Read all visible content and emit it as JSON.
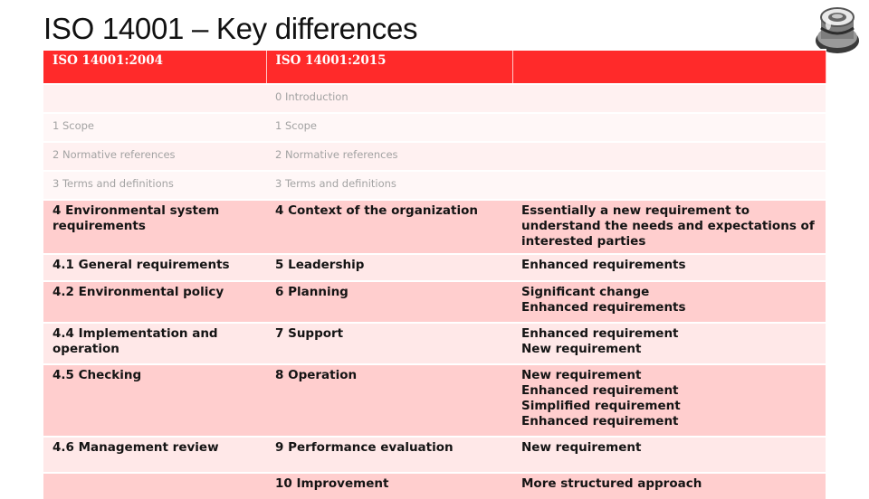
{
  "slide": {
    "title": "ISO 14001 – Key differences"
  },
  "colors": {
    "header": "#ff2a2a",
    "row_odd": "#ffcece",
    "row_even": "#ffe8e8"
  },
  "table": {
    "headers": [
      "ISO 14001:2004",
      "ISO 14001:2015",
      ""
    ],
    "rows": [
      {
        "cells": [
          "",
          "0 Introduction",
          ""
        ]
      },
      {
        "cells": [
          "1 Scope",
          "1 Scope",
          ""
        ]
      },
      {
        "cells": [
          "2 Normative references",
          "2 Normative references",
          ""
        ]
      },
      {
        "cells": [
          "3 Terms and definitions",
          "3 Terms and definitions",
          ""
        ]
      },
      {
        "cells": [
          "4 Environmental system requirements",
          "4 Context of the organization",
          "Essentially a new requirement to understand the needs and expectations of interested parties"
        ]
      },
      {
        "cells": [
          "4.1 General requirements",
          "5 Leadership",
          "Enhanced requirements"
        ]
      },
      {
        "cells": [
          "4.2 Environmental policy",
          "6 Planning",
          "Significant change\nEnhanced requirements"
        ]
      },
      {
        "cells": [
          "4.4 Implementation and operation",
          "7 Support",
          "Enhanced requirement\nNew requirement"
        ]
      },
      {
        "cells": [
          "4.5 Checking",
          "8 Operation",
          "New requirement\nEnhanced requirement\nSimplified requirement\nEnhanced requirement"
        ]
      },
      {
        "cells": [
          "4.6 Management review",
          "9 Performance evaluation",
          "New requirement"
        ]
      },
      {
        "cells": [
          "",
          "10 Improvement",
          "More structured approach"
        ]
      }
    ]
  }
}
